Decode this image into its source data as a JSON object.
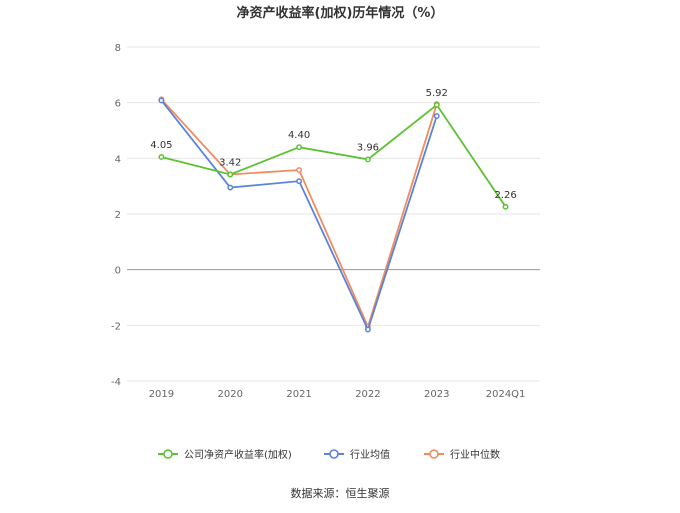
{
  "chart_data": {
    "type": "line",
    "title": "净资产收益率(加权)历年情况（%）",
    "categories": [
      "2019",
      "2020",
      "2021",
      "2022",
      "2023",
      "2024Q1"
    ],
    "ylim": [
      -4,
      8
    ],
    "yticks": [
      "8",
      "6",
      "4",
      "2",
      "0",
      "-2",
      "-4"
    ],
    "grid": true,
    "legend_position": "bottom",
    "series": [
      {
        "name": "公司净资产收益率(加权)",
        "color": "#5cc133",
        "values": [
          4.05,
          3.42,
          4.4,
          3.96,
          5.92,
          2.26
        ],
        "labels": [
          "4.05",
          "3.42",
          "4.40",
          "3.96",
          "5.92",
          "2.26"
        ]
      },
      {
        "name": "行业均值",
        "color": "#5b83d9",
        "values": [
          6.08,
          2.95,
          3.18,
          -2.15,
          5.52,
          null
        ],
        "labels": []
      },
      {
        "name": "行业中位数",
        "color": "#f08c5f",
        "values": [
          6.12,
          3.42,
          3.58,
          -2.05,
          5.95,
          null
        ],
        "labels": []
      }
    ]
  },
  "source": "数据来源：恒生聚源"
}
